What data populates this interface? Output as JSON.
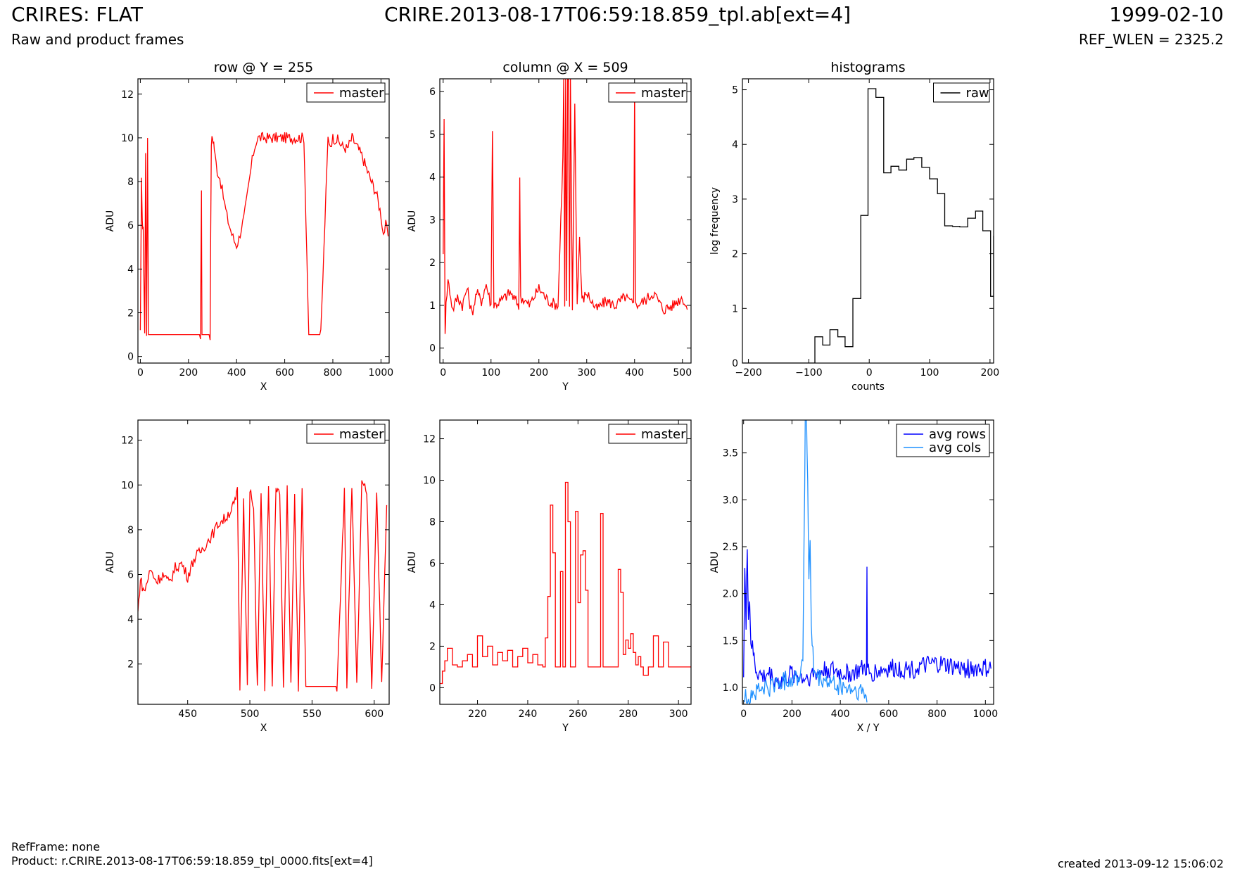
{
  "header": {
    "title": "CRIRES: FLAT",
    "filename": "CRIRE.2013-08-17T06:59:18.859_tpl.ab[ext=4]",
    "date": "1999-02-10",
    "subtitle": "Raw and product frames",
    "ref_wlen": "REF_WLEN = 2325.2"
  },
  "footer": {
    "ref_frame": "RefFrame: none",
    "product": "Product: r.CRIRE.2013-08-17T06:59:18.859_tpl_0000.fits[ext=4]",
    "created": "created 2013-09-12 15:06:02"
  },
  "colors": {
    "master": "#ff0000",
    "raw": "#000000",
    "avg_rows": "#0000ff",
    "avg_cols": "#1e90ff"
  },
  "chart_data": [
    {
      "id": "row",
      "type": "line",
      "title": "row @ Y = 255",
      "xlabel": "X",
      "ylabel": "ADU",
      "xlim": [
        -10,
        1034
      ],
      "ylim": [
        -0.3,
        12.7
      ],
      "xticks": [
        0,
        200,
        400,
        600,
        800,
        1000
      ],
      "yticks": [
        0,
        2,
        4,
        6,
        8,
        10,
        12
      ],
      "legend": "top-right",
      "series": [
        {
          "name": "master",
          "color": "#ff0000",
          "style": "spiky",
          "x": [
            0,
            5,
            8,
            12,
            18,
            22,
            26,
            30,
            34,
            38,
            50,
            100,
            150,
            200,
            250,
            254,
            256,
            290,
            295,
            300,
            305,
            310,
            320,
            330,
            340,
            350,
            360,
            370,
            380,
            390,
            400,
            410,
            420,
            430,
            440,
            450,
            460,
            470,
            480,
            490,
            500,
            520,
            540,
            560,
            580,
            600,
            620,
            640,
            660,
            680,
            700,
            720,
            750,
            780,
            790,
            800,
            820,
            840,
            860,
            880,
            900,
            920,
            940,
            960,
            980,
            1000,
            1010,
            1020,
            1030
          ],
          "y": [
            1,
            8.4,
            6,
            6,
            1,
            9.5,
            1,
            10,
            1,
            1,
            1,
            1,
            1,
            1,
            1,
            7.7,
            1,
            1,
            9.8,
            10,
            9.8,
            9.2,
            8.5,
            8.2,
            7.6,
            7.0,
            6.4,
            6.0,
            5.6,
            5.3,
            5.1,
            5.4,
            5.9,
            6.3,
            7.0,
            7.8,
            8.6,
            9.3,
            9.8,
            10,
            10,
            10,
            10,
            10,
            10,
            10,
            10,
            10,
            10,
            10,
            1,
            1,
            1,
            10,
            9.7,
            10,
            9.9,
            9.6,
            9.5,
            10,
            9.6,
            9.2,
            8.6,
            8.0,
            7.5,
            6.5,
            5.6,
            6.0,
            5.5
          ]
        }
      ]
    },
    {
      "id": "column",
      "type": "line",
      "title": "column @ X = 509",
      "xlabel": "Y",
      "ylabel": "ADU",
      "xlim": [
        -7,
        518
      ],
      "ylim": [
        -0.35,
        6.3
      ],
      "xticks": [
        0,
        100,
        200,
        300,
        400,
        500
      ],
      "yticks": [
        0,
        1,
        2,
        3,
        4,
        5,
        6
      ],
      "legend": "top-right",
      "series": [
        {
          "name": "master",
          "color": "#ff0000",
          "style": "spiky",
          "x": [
            0,
            2,
            4,
            6,
            10,
            20,
            30,
            40,
            50,
            60,
            70,
            80,
            90,
            100,
            103,
            106,
            120,
            140,
            158,
            160,
            162,
            180,
            200,
            220,
            240,
            250,
            252,
            254,
            256,
            258,
            260,
            262,
            264,
            266,
            270,
            275,
            280,
            285,
            290,
            300,
            320,
            340,
            360,
            380,
            398,
            400,
            402,
            420,
            440,
            460,
            480,
            500,
            510
          ],
          "y": [
            2.3,
            5.3,
            0.4,
            1.0,
            1.6,
            0.9,
            1.2,
            1.0,
            1.4,
            0.8,
            1.3,
            1.1,
            1.5,
            1.0,
            5.2,
            1.0,
            1.1,
            1.3,
            1.0,
            3.9,
            1.2,
            1.0,
            1.4,
            1.1,
            1.0,
            4.4,
            6.3,
            1.0,
            6.3,
            1.0,
            6.3,
            6.3,
            1.0,
            6.3,
            1.0,
            5.7,
            1.0,
            2.6,
            1.1,
            1.3,
            0.9,
            1.1,
            1.0,
            1.2,
            1.0,
            6.3,
            1.0,
            1.1,
            1.3,
            0.9,
            1.0,
            1.2,
            0.9
          ]
        }
      ]
    },
    {
      "id": "histograms",
      "type": "bar",
      "title": "histograms",
      "xlabel": "counts",
      "ylabel": "log frequency",
      "xlim": [
        -210,
        206
      ],
      "ylim": [
        0,
        5.2
      ],
      "xticks": [
        -200,
        -100,
        0,
        100,
        200
      ],
      "yticks": [
        0,
        1,
        2,
        3,
        4,
        5
      ],
      "legend": "top-right",
      "series": [
        {
          "name": "raw",
          "color": "#000000",
          "style": "step",
          "edges": [
            -210,
            -90,
            -77,
            -65,
            -52,
            -40,
            -27,
            -14,
            -2,
            11,
            24,
            36,
            49,
            62,
            74,
            87,
            100,
            113,
            125,
            138,
            150,
            163,
            176,
            188,
            201,
            206
          ],
          "values": [
            0,
            0.48,
            0.33,
            0.61,
            0.48,
            0.3,
            1.18,
            2.7,
            5.02,
            4.86,
            3.48,
            3.6,
            3.53,
            3.73,
            3.76,
            3.58,
            3.37,
            3.1,
            2.51,
            2.5,
            2.49,
            2.65,
            2.78,
            2.42,
            1.22,
            2.33
          ]
        }
      ]
    },
    {
      "id": "row-zoom",
      "type": "line",
      "title": "",
      "xlabel": "X",
      "ylabel": "ADU",
      "xlim": [
        410,
        612
      ],
      "ylim": [
        0.2,
        12.9
      ],
      "xticks": [
        450,
        500,
        550,
        600
      ],
      "yticks": [
        2,
        4,
        6,
        8,
        10,
        12
      ],
      "legend": "top-right",
      "series": [
        {
          "name": "master",
          "color": "#ff0000",
          "style": "spiky",
          "x": [
            410,
            412,
            415,
            420,
            425,
            430,
            435,
            440,
            445,
            450,
            455,
            460,
            465,
            470,
            475,
            480,
            485,
            488,
            490,
            492,
            495,
            498,
            500,
            503,
            506,
            509,
            512,
            515,
            518,
            521,
            524,
            527,
            530,
            533,
            536,
            539,
            542,
            545,
            560,
            570,
            576,
            578,
            582,
            586,
            590,
            594,
            598,
            602,
            606,
            610
          ],
          "y": [
            4.3,
            5.8,
            5.2,
            6.2,
            5.7,
            6.0,
            5.6,
            6.3,
            6.5,
            5.9,
            6.7,
            7.0,
            7.4,
            7.8,
            8.3,
            8.5,
            8.9,
            9.2,
            9.7,
            1.0,
            9.4,
            1.0,
            9.8,
            8.9,
            1.0,
            9.7,
            1.0,
            9.9,
            1.0,
            10.0,
            9.6,
            1.0,
            9.9,
            1.0,
            9.5,
            1.0,
            9.9,
            1.0,
            1.0,
            1.0,
            9.7,
            1.0,
            9.9,
            1.0,
            10.0,
            9.7,
            1.0,
            9.8,
            1.0,
            9.1
          ]
        }
      ]
    },
    {
      "id": "column-zoom",
      "type": "line",
      "title": "",
      "xlabel": "Y",
      "ylabel": "ADU",
      "xlim": [
        205,
        305
      ],
      "ylim": [
        -0.8,
        12.9
      ],
      "xticks": [
        220,
        240,
        260,
        280,
        300
      ],
      "yticks": [
        0,
        2,
        4,
        6,
        8,
        10,
        12
      ],
      "legend": "top-right",
      "series": [
        {
          "name": "master",
          "color": "#ff0000",
          "style": "step",
          "x": [
            205,
            206,
            207,
            208,
            210,
            212,
            214,
            216,
            218,
            220,
            222,
            224,
            226,
            228,
            230,
            232,
            234,
            236,
            238,
            240,
            242,
            244,
            246,
            247,
            248,
            249,
            250,
            251,
            252,
            253,
            254,
            255,
            256,
            257,
            258,
            259,
            260,
            261,
            262,
            263,
            264,
            265,
            266,
            268,
            269,
            270,
            272,
            274,
            276,
            277,
            278,
            279,
            280,
            281,
            282,
            283,
            284,
            285,
            286,
            288,
            290,
            292,
            294,
            296,
            298,
            300,
            305
          ],
          "y": [
            0.2,
            0.8,
            1.3,
            1.9,
            1.1,
            1.0,
            1.3,
            1.6,
            1.0,
            2.5,
            1.5,
            2.0,
            1.1,
            1.7,
            1.3,
            1.8,
            1.0,
            1.5,
            1.9,
            1.2,
            1.6,
            1.1,
            1.0,
            2.4,
            4.4,
            8.8,
            6.5,
            1.0,
            1.0,
            5.6,
            1.0,
            9.9,
            8.0,
            1.0,
            1.0,
            8.5,
            4.1,
            6.4,
            6.6,
            4.7,
            1.0,
            1.0,
            1.0,
            1.0,
            8.4,
            1.0,
            1.0,
            1.0,
            5.7,
            4.6,
            1.6,
            2.3,
            1.9,
            2.6,
            1.7,
            1.1,
            1.5,
            1.0,
            0.6,
            1.0,
            2.5,
            1.0,
            2.2,
            1.0,
            1.0,
            1.0,
            1.0
          ]
        }
      ]
    },
    {
      "id": "averages",
      "type": "line",
      "title": "",
      "xlabel": "X / Y",
      "ylabel": "ADU",
      "xlim": [
        -5,
        1034
      ],
      "ylim": [
        0.82,
        3.85
      ],
      "xticks": [
        0,
        200,
        400,
        600,
        800,
        1000
      ],
      "yticks": [
        1.0,
        1.5,
        2.0,
        2.5,
        3.0,
        3.5
      ],
      "legend": "top-right",
      "series": [
        {
          "name": "avg rows",
          "color": "#0000ff",
          "style": "noisy",
          "x": [
            0,
            5,
            10,
            15,
            20,
            25,
            30,
            40,
            50,
            60,
            80,
            100,
            150,
            200,
            250,
            300,
            350,
            400,
            450,
            500,
            508,
            510,
            512,
            520,
            600,
            700,
            800,
            900,
            1000,
            1023
          ],
          "y": [
            1.2,
            2.3,
            1.6,
            2.5,
            1.8,
            1.9,
            1.5,
            1.35,
            1.2,
            1.15,
            1.1,
            1.15,
            1.05,
            1.15,
            1.1,
            1.15,
            1.2,
            1.15,
            1.15,
            1.2,
            1.2,
            2.2,
            1.2,
            1.15,
            1.2,
            1.2,
            1.25,
            1.2,
            1.2,
            1.2
          ]
        },
        {
          "name": "avg cols",
          "color": "#1e90ff",
          "style": "noisy",
          "x": [
            0,
            20,
            50,
            100,
            150,
            200,
            230,
            245,
            250,
            255,
            260,
            265,
            270,
            275,
            280,
            290,
            300,
            350,
            400,
            450,
            500,
            510
          ],
          "y": [
            0.88,
            0.9,
            0.95,
            1.0,
            1.05,
            1.1,
            1.12,
            1.3,
            2.6,
            3.85,
            3.85,
            3.2,
            2.2,
            2.5,
            1.6,
            1.2,
            1.1,
            1.05,
            1.0,
            0.97,
            0.93,
            0.84
          ]
        }
      ]
    }
  ]
}
